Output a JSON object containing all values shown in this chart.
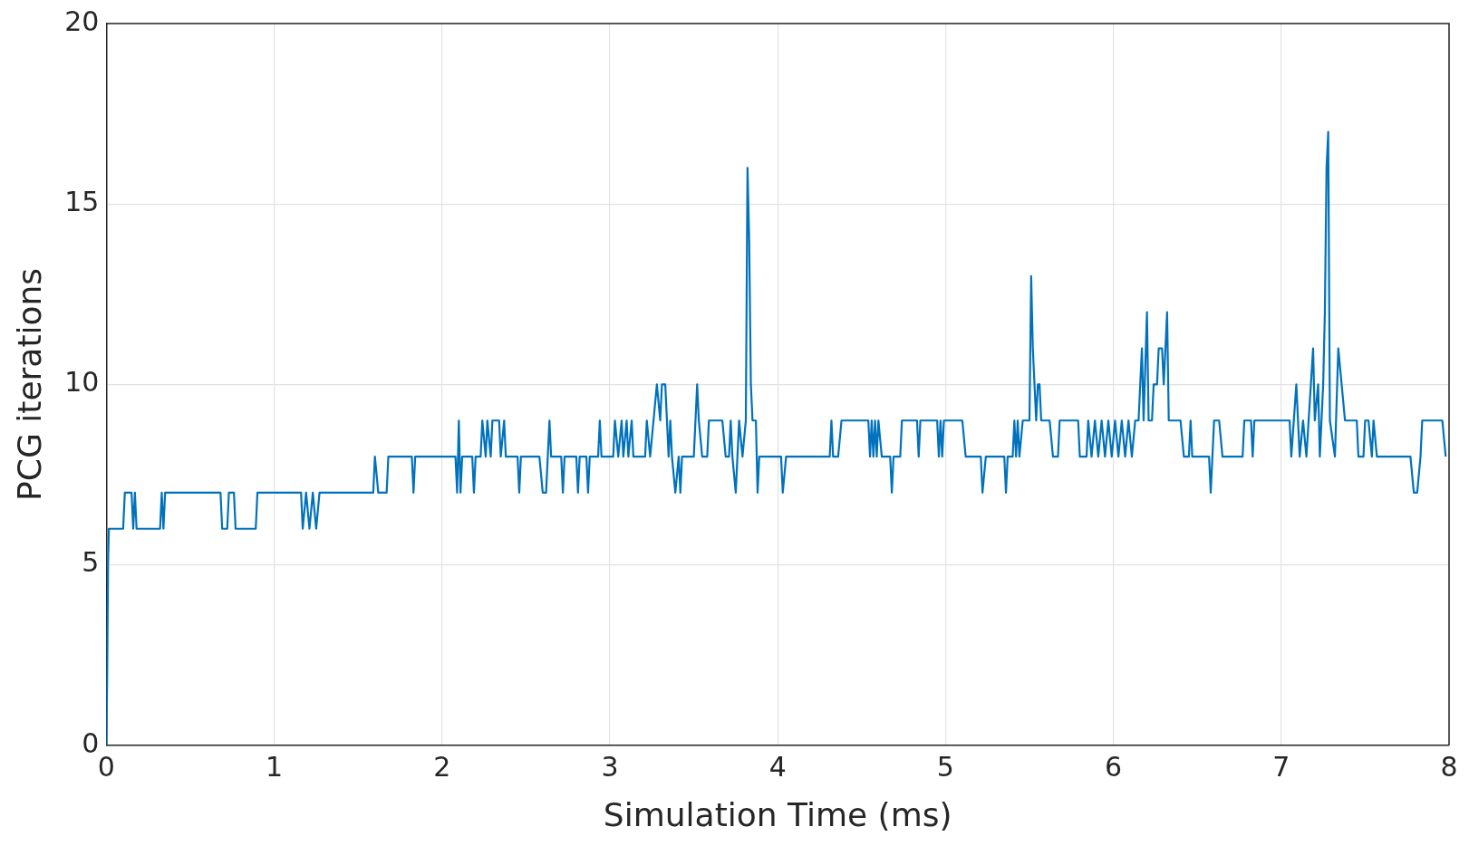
{
  "chart_data": {
    "type": "line",
    "xlabel": "Simulation Time (ms)",
    "ylabel": "PCG iterations",
    "xlim": [
      0,
      8
    ],
    "xticks": [
      0,
      1,
      2,
      3,
      4,
      5,
      6,
      7,
      8
    ],
    "ylim": [
      0,
      20
    ],
    "yticks": [
      0,
      5,
      10,
      15,
      20
    ],
    "grid": true,
    "marker": "none",
    "line_style": "solid",
    "legend": false,
    "series": [
      {
        "color": "#0072bd",
        "x": [
          0,
          0.005,
          0.01,
          0.015,
          0.1,
          0.11,
          0.15,
          0.16,
          0.17,
          0.18,
          0.32,
          0.33,
          0.34,
          0.35,
          0.68,
          0.69,
          0.72,
          0.73,
          0.76,
          0.77,
          0.89,
          0.9,
          1.16,
          1.17,
          1.19,
          1.21,
          1.23,
          1.25,
          1.27,
          1.59,
          1.6,
          1.62,
          1.67,
          1.68,
          1.82,
          1.83,
          1.84,
          2.08,
          2.09,
          2.1,
          2.11,
          2.12,
          2.18,
          2.19,
          2.2,
          2.23,
          2.24,
          2.26,
          2.27,
          2.29,
          2.3,
          2.34,
          2.35,
          2.37,
          2.38,
          2.45,
          2.46,
          2.47,
          2.58,
          2.6,
          2.62,
          2.64,
          2.65,
          2.71,
          2.72,
          2.73,
          2.8,
          2.81,
          2.82,
          2.86,
          2.87,
          2.88,
          2.93,
          2.94,
          2.95,
          3.02,
          3.03,
          3.05,
          3.07,
          3.08,
          3.1,
          3.11,
          3.13,
          3.14,
          3.21,
          3.22,
          3.24,
          3.26,
          3.28,
          3.3,
          3.31,
          3.33,
          3.34,
          3.35,
          3.36,
          3.37,
          3.39,
          3.41,
          3.42,
          3.43,
          3.5,
          3.52,
          3.53,
          3.55,
          3.58,
          3.59,
          3.67,
          3.69,
          3.71,
          3.72,
          3.73,
          3.75,
          3.76,
          3.77,
          3.79,
          3.81,
          3.82,
          3.83,
          3.84,
          3.85,
          3.87,
          3.88,
          3.89,
          4.02,
          4.03,
          4.05,
          4.31,
          4.32,
          4.33,
          4.36,
          4.38,
          4.54,
          4.55,
          4.56,
          4.57,
          4.58,
          4.59,
          4.6,
          4.62,
          4.67,
          4.68,
          4.69,
          4.73,
          4.74,
          4.83,
          4.84,
          4.85,
          4.95,
          4.96,
          4.97,
          4.98,
          4.99,
          5.1,
          5.12,
          5.21,
          5.22,
          5.24,
          5.35,
          5.36,
          5.37,
          5.4,
          5.41,
          5.42,
          5.43,
          5.44,
          5.46,
          5.5,
          5.51,
          5.52,
          5.53,
          5.54,
          5.55,
          5.56,
          5.57,
          5.62,
          5.64,
          5.67,
          5.68,
          5.79,
          5.8,
          5.84,
          5.85,
          5.87,
          5.89,
          5.91,
          5.93,
          5.95,
          5.97,
          5.99,
          6.01,
          6.03,
          6.05,
          6.07,
          6.09,
          6.11,
          6.13,
          6.15,
          6.16,
          6.17,
          6.18,
          6.2,
          6.21,
          6.23,
          6.24,
          6.26,
          6.27,
          6.29,
          6.3,
          6.32,
          6.33,
          6.4,
          6.42,
          6.45,
          6.46,
          6.47,
          6.57,
          6.58,
          6.59,
          6.6,
          6.63,
          6.65,
          6.77,
          6.78,
          6.82,
          6.83,
          6.84,
          7.05,
          7.06,
          7.09,
          7.1,
          7.11,
          7.13,
          7.15,
          7.19,
          7.2,
          7.22,
          7.23,
          7.25,
          7.26,
          7.27,
          7.28,
          7.29,
          7.32,
          7.34,
          7.36,
          7.38,
          7.45,
          7.46,
          7.49,
          7.5,
          7.52,
          7.54,
          7.55,
          7.57,
          7.77,
          7.79,
          7.81,
          7.83,
          7.84,
          7.96,
          7.98
        ],
        "values": [
          0,
          2,
          5,
          6,
          6,
          7,
          7,
          6,
          7,
          6,
          6,
          7,
          6,
          7,
          7,
          6,
          6,
          7,
          7,
          6,
          6,
          7,
          7,
          6,
          7,
          6,
          7,
          6,
          7,
          7,
          8,
          7,
          7,
          8,
          8,
          7,
          8,
          8,
          7,
          9,
          7,
          8,
          8,
          7,
          8,
          8,
          9,
          8,
          9,
          8,
          9,
          9,
          8,
          9,
          8,
          8,
          7,
          8,
          8,
          7,
          7,
          9,
          8,
          8,
          7,
          8,
          8,
          7,
          8,
          8,
          7,
          8,
          8,
          9,
          8,
          8,
          9,
          8,
          9,
          8,
          9,
          8,
          9,
          8,
          8,
          9,
          8,
          9,
          10,
          9,
          10,
          10,
          9,
          8,
          9,
          8,
          7,
          8,
          7,
          8,
          8,
          10,
          9,
          8,
          8,
          9,
          9,
          8,
          8,
          9,
          8,
          7,
          8,
          9,
          8,
          9,
          16,
          14,
          10,
          9,
          9,
          7,
          8,
          8,
          7,
          8,
          8,
          9,
          8,
          8,
          9,
          9,
          8,
          9,
          8,
          9,
          8,
          9,
          8,
          8,
          7,
          8,
          8,
          9,
          9,
          8,
          9,
          9,
          8,
          9,
          8,
          9,
          9,
          8,
          8,
          7,
          8,
          8,
          7,
          8,
          8,
          9,
          8,
          9,
          8,
          9,
          9,
          13,
          11,
          10,
          9,
          10,
          10,
          9,
          9,
          8,
          8,
          9,
          9,
          8,
          8,
          9,
          8,
          9,
          8,
          9,
          8,
          9,
          8,
          9,
          8,
          9,
          8,
          9,
          8,
          9,
          9,
          10,
          11,
          9,
          12,
          9,
          9,
          10,
          10,
          11,
          11,
          10,
          12,
          9,
          9,
          8,
          8,
          9,
          8,
          8,
          7,
          8,
          9,
          9,
          8,
          8,
          9,
          9,
          8,
          9,
          9,
          8,
          10,
          9,
          8,
          9,
          8,
          11,
          9,
          10,
          8,
          10,
          12,
          16,
          17,
          9,
          8,
          11,
          10,
          9,
          9,
          8,
          8,
          9,
          9,
          8,
          9,
          8,
          8,
          7,
          7,
          8,
          9,
          9,
          8
        ]
      }
    ]
  }
}
